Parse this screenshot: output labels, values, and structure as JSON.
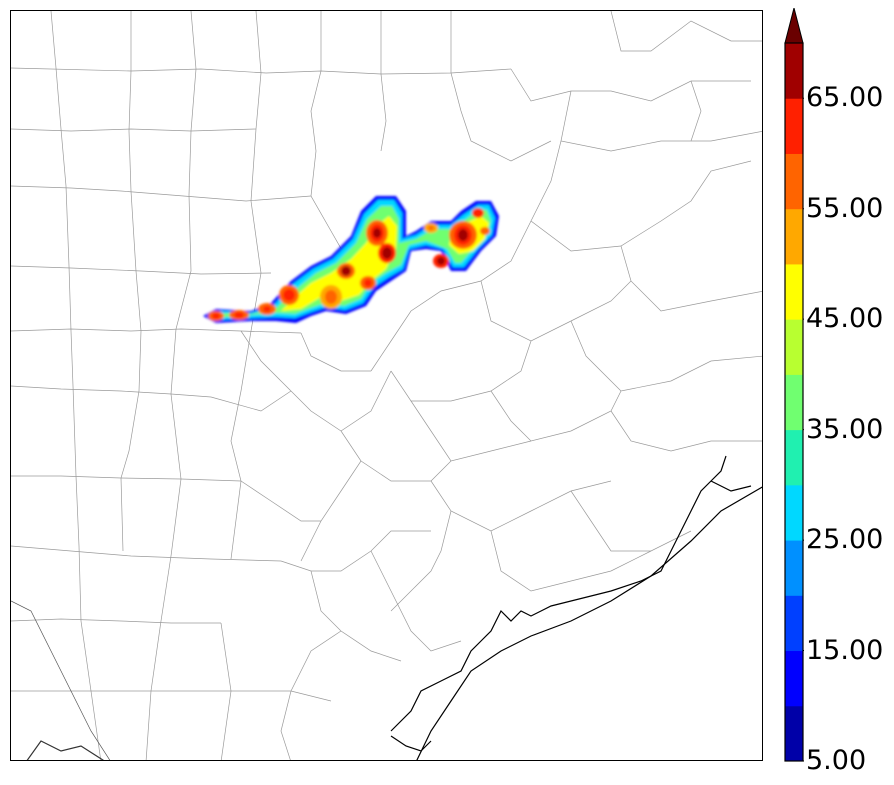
{
  "colorbar": {
    "tick_labels": [
      "65.00",
      "55.00",
      "45.00",
      "35.00",
      "25.00",
      "15.00",
      "5.00"
    ],
    "tick_values": [
      65,
      55,
      45,
      35,
      25,
      15,
      5
    ],
    "min": 5,
    "max": 70,
    "extend": "max",
    "levels": [
      5,
      10,
      15,
      20,
      25,
      30,
      35,
      40,
      45,
      50,
      55,
      60,
      65,
      70
    ],
    "colors": [
      "#0000a8",
      "#0000ff",
      "#0040ff",
      "#0090ff",
      "#00d8ff",
      "#20f0b0",
      "#70ff70",
      "#b8ff30",
      "#ffff00",
      "#ffa800",
      "#ff6400",
      "#ff2000",
      "#a00000"
    ],
    "extend_color": "#6a0000"
  },
  "map": {
    "border_color": "#000000",
    "county_line_color": "#9a9a9a",
    "coastline_color": "#000000"
  }
}
